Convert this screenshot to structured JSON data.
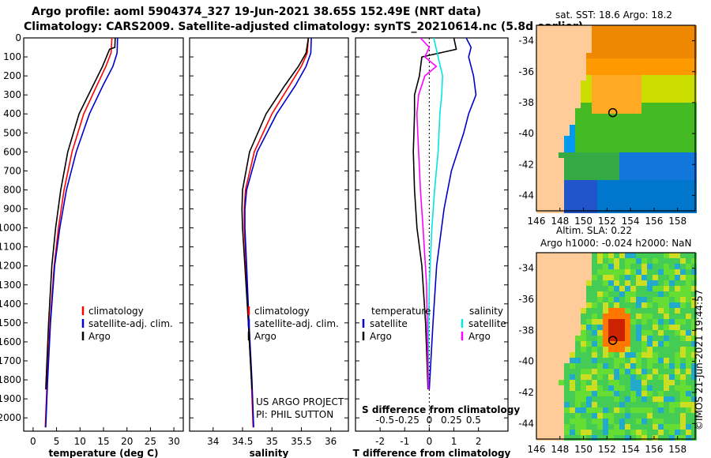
{
  "title_line1": "Argo profile: aoml 5904374_327 19-Jun-2021 38.65S 152.49E (NRT data)",
  "title_line2": "Climatology: CARS2009. Satellite-adjusted climatology: synTS_20210614.nc (5.8d earlier)",
  "colors": {
    "argo": "#000000",
    "climatology": "#ff0000",
    "satellite": "#0000cc",
    "sal_diff": "#ff00ff",
    "sat_sal": "#00e5e5",
    "land": "#ffcc99"
  },
  "depth_ticks": [
    "0",
    "100",
    "200",
    "300",
    "400",
    "500",
    "600",
    "700",
    "800",
    "900",
    "1000",
    "1100",
    "1200",
    "1300",
    "1400",
    "1500",
    "1600",
    "1700",
    "1800",
    "1900",
    "2000"
  ],
  "chart_data": [
    {
      "type": "line",
      "title": "",
      "xlabel": "temperature (deg C)",
      "ylabel": "depth",
      "xlim": [
        -2,
        32
      ],
      "ylim": [
        2070,
        0
      ],
      "xticks": [
        "0",
        "5",
        "10",
        "15",
        "20",
        "25",
        "30"
      ],
      "xtick_values": [
        0,
        5,
        10,
        15,
        20,
        25,
        30
      ],
      "legend": [
        "climatology",
        "satellite-adj. clim.",
        "Argo"
      ],
      "legend_position": "middle-right",
      "series": [
        {
          "name": "climatology",
          "color": "#ff0000",
          "depth": [
            0,
            80,
            150,
            250,
            400,
            600,
            800,
            1000,
            1200,
            1500,
            1800,
            2050
          ],
          "values": [
            16.8,
            16.6,
            15.5,
            13.6,
            10.8,
            8.3,
            6.6,
            5.4,
            4.5,
            3.6,
            3.0,
            2.6
          ]
        },
        {
          "name": "satellite-adj. clim.",
          "color": "#0000cc",
          "depth": [
            0,
            80,
            150,
            250,
            400,
            600,
            800,
            1000,
            1200,
            1500,
            1800,
            2050
          ],
          "values": [
            18.0,
            17.9,
            17.0,
            14.9,
            12.0,
            9.2,
            7.1,
            5.7,
            4.6,
            3.7,
            3.1,
            2.7
          ]
        },
        {
          "name": "Argo",
          "color": "#000000",
          "depth": [
            0,
            50,
            60,
            150,
            250,
            400,
            600,
            800,
            1000,
            1200,
            1500,
            1850
          ],
          "values": [
            17.5,
            17.4,
            16.3,
            14.8,
            12.8,
            9.8,
            7.4,
            5.9,
            4.8,
            4.0,
            3.3,
            2.7
          ]
        }
      ]
    },
    {
      "type": "line",
      "title": "",
      "xlabel": "salinity",
      "ylabel": "depth",
      "xlim": [
        33.6,
        36.3
      ],
      "ylim": [
        2070,
        0
      ],
      "xticks": [
        "34",
        "34.5",
        "35",
        "35.5",
        "36"
      ],
      "xtick_values": [
        34,
        34.5,
        35,
        35.5,
        36
      ],
      "legend": [
        "climatology",
        "satellite-adj. clim.",
        "Argo"
      ],
      "legend_position": "middle-right",
      "annotations": [
        "US ARGO PROJECT",
        "PI: PHIL SUTTON"
      ],
      "series": [
        {
          "name": "climatology",
          "color": "#ff0000",
          "depth": [
            0,
            80,
            150,
            250,
            400,
            600,
            800,
            900,
            1000,
            1200,
            1500,
            1800,
            2050
          ],
          "values": [
            35.62,
            35.6,
            35.5,
            35.3,
            35.0,
            34.7,
            34.55,
            34.53,
            34.53,
            34.56,
            34.6,
            34.65,
            34.68
          ]
        },
        {
          "name": "satellite-adj. clim.",
          "color": "#0000cc",
          "depth": [
            0,
            80,
            150,
            250,
            400,
            600,
            800,
            900,
            1000,
            1200,
            1500,
            1800,
            2050
          ],
          "values": [
            35.67,
            35.66,
            35.58,
            35.4,
            35.08,
            34.75,
            34.57,
            34.54,
            34.54,
            34.57,
            34.61,
            34.66,
            34.69
          ]
        },
        {
          "name": "Argo",
          "color": "#000000",
          "depth": [
            0,
            80,
            150,
            250,
            400,
            600,
            800,
            900,
            1000,
            1200,
            1500,
            1850
          ],
          "values": [
            35.62,
            35.58,
            35.45,
            35.22,
            34.9,
            34.62,
            34.5,
            34.49,
            34.5,
            34.54,
            34.6,
            34.66
          ]
        }
      ]
    },
    {
      "type": "line",
      "title": "",
      "xlabel": "T difference from climatology",
      "xlabel2": "S difference from climatology",
      "ylabel": "depth",
      "xlim": [
        -3,
        3.2
      ],
      "ylim": [
        2070,
        0
      ],
      "xticks": [
        "-2",
        "-1",
        "0",
        "1",
        "2"
      ],
      "xtick_values": [
        -2,
        -1,
        0,
        1,
        2
      ],
      "xticks2": [
        "-0.5",
        "-0.25",
        "0",
        "0.25",
        "0.5"
      ],
      "xtick2_values": [
        -0.5,
        -0.25,
        0,
        0.25,
        0.5
      ],
      "legend": [
        "temperature",
        "satellite",
        "Argo",
        "salinity",
        "satellite",
        "Argo"
      ],
      "legend_position": "middle",
      "series": [
        {
          "name": "temperature satellite",
          "color": "#0000cc",
          "axis": "T",
          "depth": [
            0,
            50,
            100,
            200,
            300,
            400,
            500,
            700,
            900,
            1200,
            1500,
            1850
          ],
          "values": [
            1.5,
            1.7,
            1.6,
            1.8,
            1.9,
            1.6,
            1.4,
            0.9,
            0.6,
            0.3,
            0.15,
            0.0
          ]
        },
        {
          "name": "temperature Argo",
          "color": "#000000",
          "axis": "T",
          "depth": [
            0,
            60,
            100,
            200,
            300,
            400,
            600,
            800,
            1000,
            1200,
            1500,
            1850
          ],
          "values": [
            1.0,
            1.1,
            -0.3,
            -0.4,
            -0.6,
            -0.6,
            -0.65,
            -0.6,
            -0.5,
            -0.3,
            -0.15,
            -0.05
          ]
        },
        {
          "name": "salinity satellite",
          "color": "#00e5e5",
          "axis": "S",
          "depth": [
            0,
            100,
            200,
            300,
            400,
            600,
            800,
            1000,
            1300,
            1600,
            1850
          ],
          "values": [
            0.05,
            0.1,
            0.15,
            0.14,
            0.12,
            0.1,
            0.06,
            0.03,
            0.0,
            -0.01,
            -0.01
          ]
        },
        {
          "name": "salinity Argo",
          "color": "#ff00ff",
          "axis": "S",
          "depth": [
            0,
            50,
            100,
            150,
            200,
            300,
            400,
            600,
            800,
            1000,
            1300,
            1600,
            1850
          ],
          "values": [
            -0.1,
            0.0,
            -0.05,
            0.08,
            -0.05,
            -0.12,
            -0.14,
            -0.12,
            -0.1,
            -0.07,
            -0.03,
            -0.02,
            -0.01
          ]
        }
      ]
    },
    {
      "type": "heatmap",
      "title": "sat. SST: 18.6 Argo: 18.2",
      "xticks": [
        "146",
        "148",
        "150",
        "152",
        "154",
        "156",
        "158"
      ],
      "xtick_values": [
        146,
        148,
        150,
        152,
        154,
        156,
        158
      ],
      "yticks": [
        "-34",
        "-36",
        "-38",
        "-40",
        "-42",
        "-44"
      ],
      "ytick_values": [
        -34,
        -36,
        -38,
        -40,
        -42,
        -44
      ],
      "xlim": [
        146,
        159.5
      ],
      "ylim": [
        -45,
        -33
      ],
      "marker": {
        "lon": 152.49,
        "lat": -38.65
      }
    },
    {
      "type": "heatmap",
      "title": "Altim. SLA: 0.22",
      "subtitle": "Argo h1000: -0.024 h2000: NaN",
      "xticks": [
        "146",
        "148",
        "150",
        "152",
        "154",
        "156",
        "158"
      ],
      "xtick_values": [
        146,
        148,
        150,
        152,
        154,
        156,
        158
      ],
      "yticks": [
        "-34",
        "-36",
        "-38",
        "-40",
        "-42",
        "-44"
      ],
      "ytick_values": [
        -34,
        -36,
        -38,
        -40,
        -42,
        -44
      ],
      "xlim": [
        146,
        159.5
      ],
      "ylim": [
        -45,
        -33
      ],
      "marker": {
        "lon": 152.49,
        "lat": -38.65
      }
    }
  ],
  "credit": "©IMOS 21-Jun-2021 19:44:57"
}
